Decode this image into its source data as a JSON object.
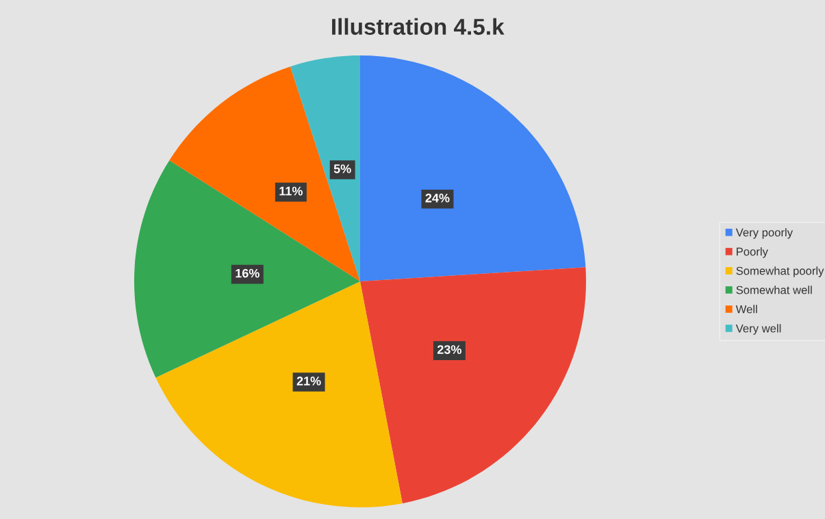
{
  "chart_data": {
    "type": "pie",
    "title": "Illustration 4.5.k",
    "categories": [
      "Very poorly",
      "Poorly",
      "Somewhat poorly",
      "Somewhat well",
      "Well",
      "Very well"
    ],
    "values": [
      24,
      23,
      21,
      16,
      11,
      5
    ],
    "value_labels": [
      "24%",
      "23%",
      "21%",
      "16%",
      "11%",
      "5%"
    ],
    "colors": [
      "#4285f4",
      "#ea4335",
      "#fbbc04",
      "#34a853",
      "#ff6d01",
      "#46bdc6"
    ],
    "legend": "right"
  }
}
